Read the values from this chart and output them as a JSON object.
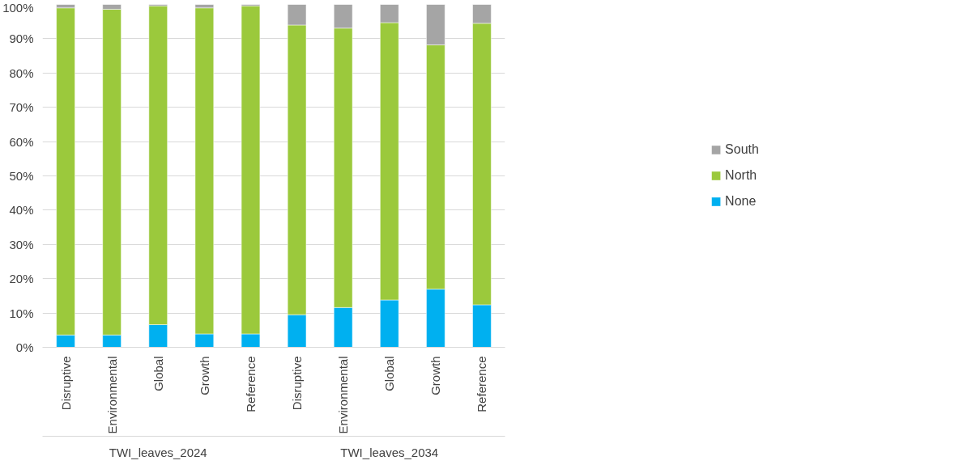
{
  "chart_data": {
    "type": "bar",
    "stacked": true,
    "categories": [
      "Disruptive",
      "Environmental",
      "Global",
      "Growth",
      "Reference",
      "Disruptive",
      "Environmental",
      "Global",
      "Growth",
      "Reference"
    ],
    "series": [
      {
        "name": "None",
        "color": "#00b0f0",
        "values": [
          3.6,
          3.6,
          6.6,
          3.9,
          3.9,
          9.5,
          11.6,
          13.8,
          17.0,
          12.4
        ]
      },
      {
        "name": "North",
        "color": "#9bc93c",
        "values": [
          95.4,
          95.0,
          93.0,
          95.1,
          95.7,
          84.5,
          81.5,
          80.9,
          71.2,
          82.1
        ]
      },
      {
        "name": "South",
        "color": "#a5a5a5",
        "values": [
          1.0,
          1.4,
          0.4,
          1.0,
          0.4,
          6.0,
          6.9,
          5.3,
          11.8,
          5.5
        ]
      }
    ],
    "ylim": [
      0,
      100
    ],
    "yticks": [
      {
        "value": 0,
        "label": "0%"
      },
      {
        "value": 10,
        "label": "10%"
      },
      {
        "value": 20,
        "label": "20%"
      },
      {
        "value": 30,
        "label": "30%"
      },
      {
        "value": 40,
        "label": "40%"
      },
      {
        "value": 50,
        "label": "50%"
      },
      {
        "value": 60,
        "label": "60%"
      },
      {
        "value": 70,
        "label": "70%"
      },
      {
        "value": 80,
        "label": "80%"
      },
      {
        "value": 90,
        "label": "90%"
      },
      {
        "value": 100,
        "label": "100%"
      }
    ],
    "grid": "y",
    "legend": "right",
    "annotations": [
      "TWI_leaves_2024",
      "TWI_leaves_2034"
    ]
  }
}
